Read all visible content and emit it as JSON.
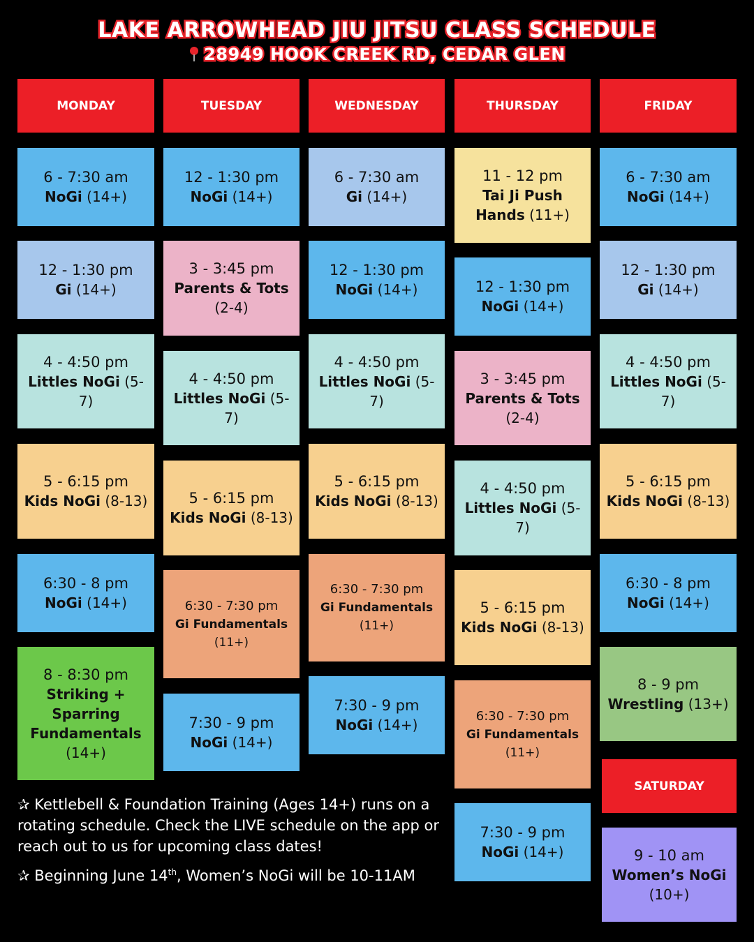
{
  "header": {
    "title": "LAKE ARROWHEAD JIU JITSU CLASS SCHEDULE",
    "address": "28949 HOOK CREEK RD, CEDAR GLEN"
  },
  "days": [
    {
      "name": "MONDAY",
      "classes": [
        {
          "time": "6 - 7:30 am",
          "name": "NoGi",
          "ages": "(14+)"
        },
        {
          "time": "12 - 1:30 pm",
          "name": "Gi",
          "ages": "(14+)"
        },
        {
          "time": "4 - 4:50 pm",
          "name": "Littles NoGi",
          "ages": "(5-7)"
        },
        {
          "time": "5 - 6:15 pm",
          "name": "Kids NoGi",
          "ages": "(8-13)"
        },
        {
          "time": "6:30 - 8 pm",
          "name": "NoGi",
          "ages": "(14+)"
        },
        {
          "time": "8 - 8:30 pm",
          "name": "Striking + Sparring Fundamentals",
          "ages": "(14+)"
        }
      ]
    },
    {
      "name": "TUESDAY",
      "classes": [
        {
          "time": "12 - 1:30 pm",
          "name": "NoGi",
          "ages": "(14+)"
        },
        {
          "time": "3 - 3:45 pm",
          "name": "Parents & Tots",
          "ages": "(2-4)"
        },
        {
          "time": "4 - 4:50 pm",
          "name": "Littles NoGi",
          "ages": "(5-7)"
        },
        {
          "time": "5 - 6:15 pm",
          "name": "Kids NoGi",
          "ages": "(8-13)"
        },
        {
          "time": "6:30 - 7:30 pm",
          "name": "Gi Fundamentals",
          "ages": "(11+)"
        },
        {
          "time": "7:30 - 9 pm",
          "name": "NoGi",
          "ages": "(14+)"
        }
      ]
    },
    {
      "name": "WEDNESDAY",
      "classes": [
        {
          "time": "6 - 7:30 am",
          "name": "Gi",
          "ages": "(14+)"
        },
        {
          "time": "12 - 1:30 pm",
          "name": "NoGi",
          "ages": "(14+)"
        },
        {
          "time": "4 - 4:50 pm",
          "name": "Littles NoGi",
          "ages": "(5-7)"
        },
        {
          "time": "5 - 6:15 pm",
          "name": "Kids NoGi",
          "ages": "(8-13)"
        },
        {
          "time": "6:30 - 7:30 pm",
          "name": "Gi Fundamentals",
          "ages": "(11+)"
        },
        {
          "time": "7:30 - 9 pm",
          "name": "NoGi",
          "ages": "(14+)"
        }
      ]
    },
    {
      "name": "THURSDAY",
      "classes": [
        {
          "time": "11 - 12 pm",
          "name": "Tai Ji Push Hands",
          "ages": "(11+)"
        },
        {
          "time": "12 - 1:30 pm",
          "name": "NoGi",
          "ages": "(14+)"
        },
        {
          "time": "3 - 3:45 pm",
          "name": "Parents & Tots",
          "ages": "(2-4)"
        },
        {
          "time": "4 - 4:50 pm",
          "name": "Littles NoGi",
          "ages": "(5-7)"
        },
        {
          "time": "5 - 6:15 pm",
          "name": "Kids NoGi",
          "ages": "(8-13)"
        },
        {
          "time": "6:30 - 7:30 pm",
          "name": "Gi Fundamentals",
          "ages": "(11+)"
        },
        {
          "time": "7:30 - 9 pm",
          "name": "NoGi",
          "ages": "(14+)"
        }
      ]
    },
    {
      "name": "FRIDAY",
      "classes": [
        {
          "time": "6 - 7:30 am",
          "name": "NoGi",
          "ages": "(14+)"
        },
        {
          "time": "12 - 1:30 pm",
          "name": "Gi",
          "ages": "(14+)"
        },
        {
          "time": "4 - 4:50 pm",
          "name": "Littles NoGi",
          "ages": "(5-7)"
        },
        {
          "time": "5 - 6:15 pm",
          "name": "Kids NoGi",
          "ages": "(8-13)"
        },
        {
          "time": "6:30 - 8 pm",
          "name": "NoGi",
          "ages": "(14+)"
        },
        {
          "time": "8 - 9 pm",
          "name": "Wrestling",
          "ages": "(13+)"
        }
      ]
    },
    {
      "name": "SATURDAY",
      "classes": [
        {
          "time": "9 - 10 am",
          "name": "Women’s NoGi",
          "ages": "(10+)"
        }
      ]
    }
  ],
  "notes": [
    {
      "text": "✰ Kettlebell & Foundation Training (Ages 14+) runs on a rotating schedule. Check the LIVE schedule on the app or reach out to us for upcoming class dates!"
    },
    {
      "before": "✰ Beginning June 14",
      "sup": "th",
      "after": ", Women’s NoGi will be 10-11AM"
    }
  ]
}
